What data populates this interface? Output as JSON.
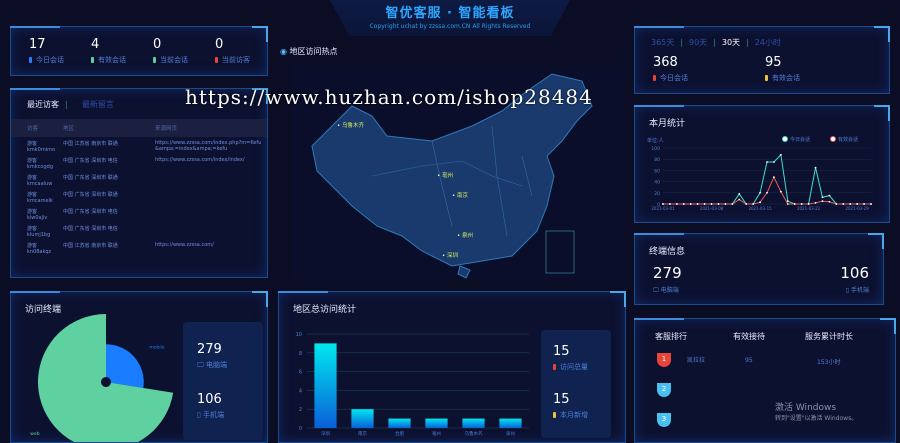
{
  "header": {
    "title": "智优客服 · 智能看板",
    "copyright": "Copyright uchat by zzssa.com.CN All Rights Reserved"
  },
  "top_stats": [
    {
      "value": "17",
      "label": "今日会话",
      "color": "#2f7bff"
    },
    {
      "value": "4",
      "label": "有效会话",
      "color": "#5ecf9a"
    },
    {
      "value": "0",
      "label": "当前会话",
      "color": "#5ecf9a"
    },
    {
      "value": "0",
      "label": "当前访客",
      "color": "#e8443a"
    }
  ],
  "visitors": {
    "tabs": [
      "最近访客",
      "最新留言"
    ],
    "columns": [
      "访客",
      "地区",
      "来源网页"
    ],
    "rows": [
      [
        "游客kmk0mimo",
        "中国 江苏省 南京市 联通",
        "https://www.zzssa.com/index.php?m=Kefu&ampa;=index&ampa;=kefu"
      ],
      [
        "游客kmkcogdg",
        "中国 广东省 深圳市 电信",
        "https://www.zzssa.com/index/index/"
      ],
      [
        "游客kmcaaluw",
        "中国 广东省 深圳市 联通",
        ""
      ],
      [
        "游客kmcamelk",
        "中国 广东省 深圳市 联通",
        ""
      ],
      [
        "游客klw0ajlv",
        "中国 广东省 深圳市 电信",
        ""
      ],
      [
        "游客klumj1bg",
        "中国 广东省 深圳市 电信",
        ""
      ],
      [
        "游客kn08akqz",
        "中国 江苏省 南京市 联通",
        "https://www.zzssa.com/"
      ]
    ]
  },
  "map": {
    "title": "地区访问热点",
    "cities": [
      "乌鲁木齐",
      "亳州",
      "南京",
      "泉州",
      "深圳"
    ]
  },
  "range": {
    "tabs": [
      "365天",
      "90天",
      "30天",
      "24小时"
    ],
    "active": 2,
    "stats": [
      {
        "value": "368",
        "label": "今日会话",
        "color": "#e8443a"
      },
      {
        "value": "95",
        "label": "有效会话",
        "color": "#e8c23a"
      }
    ]
  },
  "monthly": {
    "title": "本月统计",
    "unit": "单位:人"
  },
  "chart_data": [
    {
      "type": "line",
      "title": "本月统计",
      "ylabel": "单位:人",
      "ylim": [
        0,
        100
      ],
      "yticks": [
        0,
        20,
        40,
        60,
        80,
        100
      ],
      "xticks": [
        "2021-03-01",
        "2021-03-08",
        "2021-03-15",
        "2021-03-22",
        "2021-03-29"
      ],
      "legend": "top-right",
      "series": [
        {
          "name": "今日会话",
          "color": "#3fe0c8",
          "values": [
            0,
            0,
            0,
            0,
            0,
            0,
            0,
            0,
            0,
            0,
            0,
            18,
            0,
            0,
            20,
            75,
            75,
            88,
            5,
            0,
            0,
            0,
            65,
            12,
            15,
            0,
            0,
            0,
            0,
            0,
            0
          ]
        },
        {
          "name": "有效会话",
          "color": "#e85a5a",
          "values": [
            0,
            0,
            0,
            0,
            0,
            0,
            0,
            0,
            0,
            0,
            0,
            8,
            0,
            0,
            3,
            20,
            48,
            22,
            0,
            0,
            0,
            0,
            2,
            5,
            4,
            0,
            0,
            0,
            0,
            0,
            0
          ]
        }
      ]
    },
    {
      "type": "pie",
      "title": "访问终端",
      "rose": true,
      "slices": [
        {
          "name": "mobile",
          "value": 106,
          "color": "#1a7cff"
        },
        {
          "name": "web",
          "value": 279,
          "color": "#5fd1a0"
        }
      ]
    },
    {
      "type": "bar",
      "title": "地区总访问统计",
      "ylim": [
        0,
        10
      ],
      "yticks": [
        0,
        2,
        4,
        6,
        8,
        10
      ],
      "categories": [
        "深圳",
        "南京",
        "合肥",
        "亳州",
        "乌鲁木齐",
        "泉州"
      ],
      "values": [
        9,
        2,
        1,
        1,
        1,
        1
      ]
    }
  ],
  "terminal": {
    "pc_value": "279",
    "pc_label": "电脑端",
    "mobile_value": "106",
    "mobile_label": "手机端"
  },
  "terminal_info": {
    "title": "终端信息",
    "pc_value": "279",
    "pc_label": "电脑端",
    "mobile_value": "106",
    "mobile_label": "手机端"
  },
  "region": {
    "total_value": "15",
    "total_label": "访问总量",
    "new_value": "15",
    "new_label": "本月新增"
  },
  "ranking": {
    "columns": [
      "客服排行",
      "有效接待",
      "服务累计时长"
    ],
    "rows": [
      {
        "rank": "1",
        "name": "凯拉拉",
        "count": "95",
        "duration": "153小时"
      },
      {
        "rank": "2",
        "name": "",
        "count": "",
        "duration": ""
      },
      {
        "rank": "3",
        "name": "",
        "count": "",
        "duration": ""
      }
    ]
  },
  "watermark": "https://www.huzhan.com/ishop28484",
  "windows": {
    "title": "激活 Windows",
    "sub": "转到\"设置\"以激活 Windows。"
  }
}
